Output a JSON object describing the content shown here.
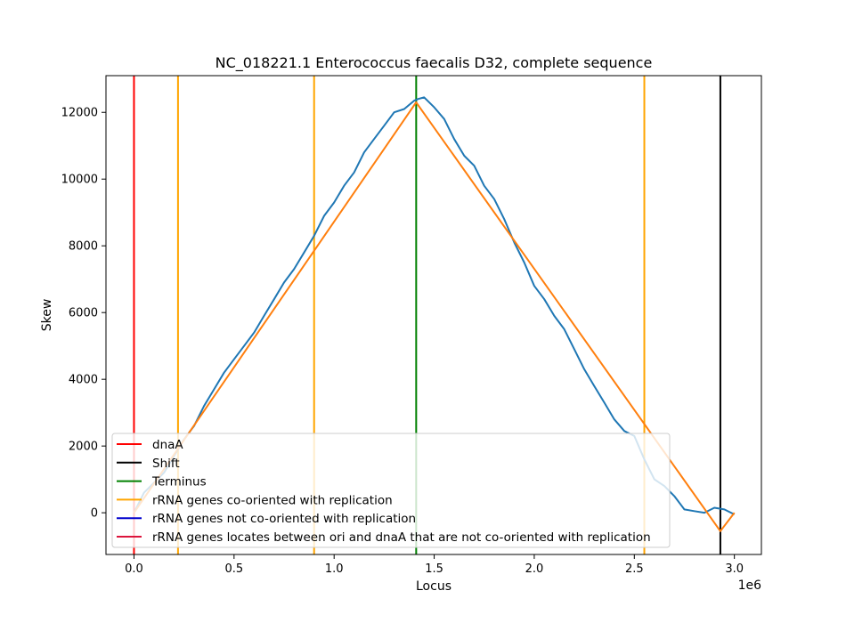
{
  "chart_data": {
    "type": "line",
    "title": "NC_018221.1 Enterococcus faecalis D32, complete sequence",
    "xlabel": "Locus",
    "ylabel": "Skew",
    "x_offset_text": "1e6",
    "xlim": [
      -0.14,
      3.135
    ],
    "ylim": [
      -1250,
      13100
    ],
    "x_ticks": [
      0.0,
      0.5,
      1.0,
      1.5,
      2.0,
      2.5,
      3.0
    ],
    "x_tick_labels": [
      "0.0",
      "0.5",
      "1.0",
      "1.5",
      "2.0",
      "2.5",
      "3.0"
    ],
    "y_ticks": [
      0,
      2000,
      4000,
      6000,
      8000,
      10000,
      12000
    ],
    "y_tick_labels": [
      "0",
      "2000",
      "4000",
      "6000",
      "8000",
      "10000",
      "12000"
    ],
    "grid": false,
    "legend_position": "lower-left",
    "series": [
      {
        "kind": "skew",
        "color": "#1f77b4",
        "x": [
          0.0,
          0.05,
          0.1,
          0.15,
          0.2,
          0.25,
          0.3,
          0.35,
          0.4,
          0.45,
          0.5,
          0.55,
          0.6,
          0.65,
          0.7,
          0.75,
          0.8,
          0.85,
          0.9,
          0.95,
          1.0,
          1.05,
          1.1,
          1.15,
          1.2,
          1.25,
          1.3,
          1.35,
          1.4,
          1.42,
          1.45,
          1.5,
          1.55,
          1.6,
          1.65,
          1.7,
          1.75,
          1.8,
          1.85,
          1.9,
          1.95,
          2.0,
          2.05,
          2.1,
          2.15,
          2.2,
          2.25,
          2.3,
          2.35,
          2.4,
          2.45,
          2.5,
          2.55,
          2.6,
          2.65,
          2.7,
          2.75,
          2.8,
          2.85,
          2.9,
          2.95,
          3.0
        ],
        "y": [
          0,
          600,
          900,
          1200,
          1700,
          2200,
          2600,
          3200,
          3700,
          4200,
          4600,
          5000,
          5400,
          5900,
          6400,
          6900,
          7300,
          7800,
          8300,
          8900,
          9300,
          9800,
          10200,
          10800,
          11200,
          11600,
          12000,
          12100,
          12350,
          12400,
          12450,
          12150,
          11800,
          11200,
          10700,
          10400,
          9800,
          9400,
          8800,
          8100,
          7500,
          6800,
          6400,
          5900,
          5500,
          4900,
          4300,
          3800,
          3300,
          2800,
          2450,
          2300,
          1600,
          1000,
          800,
          500,
          100,
          50,
          0,
          150,
          100,
          -50
        ]
      },
      {
        "kind": "fit",
        "color": "#ff7f0e",
        "x": [
          0.0,
          1.41,
          2.93,
          3.0
        ],
        "y": [
          0,
          12300,
          -550,
          0
        ]
      }
    ],
    "vertical_lines": [
      {
        "x": 0.0,
        "color": "#ff0000",
        "legend": "dnaA"
      },
      {
        "x": 2.93,
        "color": "#000000",
        "legend": "Shift"
      },
      {
        "x": 1.41,
        "color": "#008000",
        "legend": "Terminus"
      },
      {
        "x": 0.22,
        "color": "#ffa500",
        "legend": "rRNA genes co-oriented with replication"
      },
      {
        "x": 0.9,
        "color": "#ffa500",
        "legend": "rRNA genes co-oriented with replication"
      },
      {
        "x": 2.55,
        "color": "#ffa500",
        "legend": "rRNA genes co-oriented with replication"
      }
    ],
    "legend": [
      {
        "label": "dnaA",
        "color": "#ff0000"
      },
      {
        "label": "Shift",
        "color": "#000000"
      },
      {
        "label": "Terminus",
        "color": "#008000"
      },
      {
        "label": "rRNA genes co-oriented with replication",
        "color": "#ffa500"
      },
      {
        "label": "rRNA genes not co-oriented with replication",
        "color": "#0000cd"
      },
      {
        "label": "rRNA genes locates between ori and dnaA that are not co-oriented with replication",
        "color": "#dc143c"
      }
    ]
  }
}
